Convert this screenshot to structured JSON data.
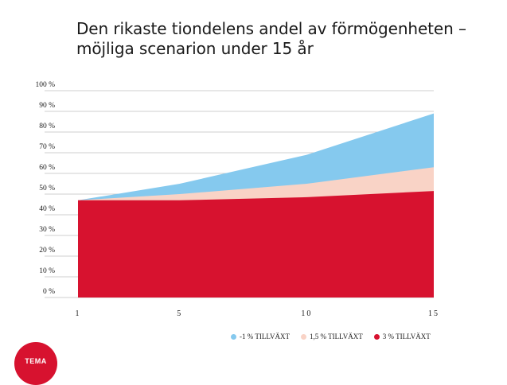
{
  "title_line1": "Den rikaste tiondelens andel av förmögenheten –",
  "title_line2": "möjliga scenarion under 15 år",
  "logo_text": "TEMA",
  "chart_data": {
    "type": "area",
    "title": "Den rikaste tiondelens andel av förmögenheten – möjliga scenarion under 15 år",
    "xlabel": "",
    "ylabel": "",
    "x": [
      1,
      5,
      10,
      15
    ],
    "xticks": [
      "1",
      "5",
      "10",
      "15"
    ],
    "ylim": [
      0,
      100
    ],
    "yticks": [
      "0 %",
      "10 %",
      "20 %",
      "30 %",
      "40 %",
      "50 %",
      "60 %",
      "70 %",
      "80 %",
      "90 %",
      "100 %"
    ],
    "grid": true,
    "legend_position": "bottom-right",
    "series": [
      {
        "name": "-1 % TILLVÄXT",
        "color": "#85c9ee",
        "values": [
          47,
          55,
          69,
          89
        ]
      },
      {
        "name": "1,5 % TILLVÄXT",
        "color": "#f9d3c6",
        "values": [
          47,
          50,
          55,
          63
        ]
      },
      {
        "name": "3 % TILLVÄXT",
        "color": "#d7122f",
        "values": [
          47,
          47,
          48.5,
          51.5
        ]
      }
    ]
  }
}
